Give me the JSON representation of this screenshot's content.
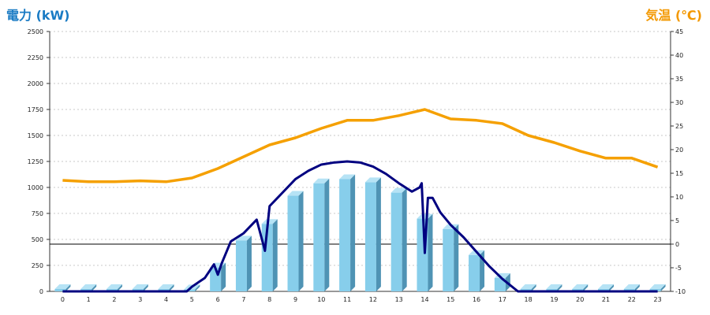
{
  "chart_data": {
    "type": "bar",
    "left_axis_title": "電力 (kW)",
    "right_axis_title": "気温 (℃)",
    "categories": [
      "0",
      "1",
      "2",
      "3",
      "4",
      "5",
      "6",
      "7",
      "8",
      "9",
      "10",
      "11",
      "12",
      "13",
      "14",
      "15",
      "16",
      "17",
      "18",
      "19",
      "20",
      "21",
      "22",
      "23"
    ],
    "ylim_left": [
      0,
      2500
    ],
    "yticks_left": [
      0,
      250,
      500,
      750,
      1000,
      1250,
      1500,
      1750,
      2000,
      2250,
      2500
    ],
    "ylim_right": [
      -10,
      45
    ],
    "yticks_right": [
      -10,
      -5,
      0,
      5,
      10,
      15,
      20,
      25,
      30,
      35,
      40,
      45
    ],
    "grid": "horizontal dotted",
    "series": [
      {
        "kind": "bar",
        "axis": "left",
        "color": "#87ceeb",
        "values": [
          0,
          0,
          0,
          0,
          0,
          20,
          230,
          490,
          650,
          920,
          1040,
          1080,
          1050,
          950,
          700,
          600,
          350,
          130,
          0,
          0,
          0,
          0,
          0,
          0
        ]
      },
      {
        "kind": "line",
        "axis": "left",
        "color": "#000080",
        "points": [
          [
            0,
            0
          ],
          [
            1,
            0
          ],
          [
            2,
            0
          ],
          [
            3,
            0
          ],
          [
            4,
            0
          ],
          [
            4.8,
            0
          ],
          [
            5,
            45
          ],
          [
            5.5,
            130
          ],
          [
            5.85,
            260
          ],
          [
            6,
            160
          ],
          [
            6.15,
            270
          ],
          [
            6.5,
            480
          ],
          [
            7,
            560
          ],
          [
            7.5,
            690
          ],
          [
            7.78,
            430
          ],
          [
            7.82,
            390
          ],
          [
            8,
            820
          ],
          [
            8.5,
            950
          ],
          [
            9,
            1080
          ],
          [
            9.5,
            1160
          ],
          [
            10,
            1220
          ],
          [
            10.5,
            1240
          ],
          [
            11,
            1250
          ],
          [
            11.5,
            1240
          ],
          [
            12,
            1200
          ],
          [
            12.5,
            1130
          ],
          [
            13,
            1040
          ],
          [
            13.5,
            960
          ],
          [
            13.8,
            1000
          ],
          [
            13.88,
            1040
          ],
          [
            14,
            370
          ],
          [
            14.12,
            900
          ],
          [
            14.3,
            900
          ],
          [
            14.6,
            760
          ],
          [
            15,
            640
          ],
          [
            15.5,
            520
          ],
          [
            16,
            380
          ],
          [
            16.5,
            240
          ],
          [
            17,
            120
          ],
          [
            17.5,
            20
          ],
          [
            17.6,
            0
          ],
          [
            18,
            0
          ],
          [
            19,
            0
          ],
          [
            20,
            0
          ],
          [
            21,
            0
          ],
          [
            22,
            0
          ],
          [
            23,
            0
          ]
        ]
      },
      {
        "kind": "line",
        "axis": "right",
        "color": "#f5a000",
        "values": [
          13.5,
          13.2,
          13.2,
          13.4,
          13.2,
          14,
          16,
          18.5,
          21,
          22.5,
          24.5,
          26.2,
          26.2,
          27.2,
          28.5,
          26.5,
          26.2,
          25.5,
          23,
          21.5,
          19.7,
          18.2,
          18.2,
          16.3
        ]
      }
    ]
  }
}
